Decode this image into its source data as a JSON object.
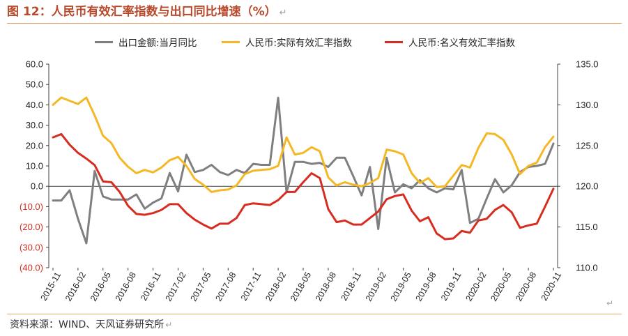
{
  "header": {
    "title": "图 12：人民币有效汇率指数与出口同比增速（%）",
    "return_mark": "↵"
  },
  "footer": {
    "source": "资料来源：WIND、天风证券研究所",
    "return_mark": "↵"
  },
  "corner_return_mark": "↵",
  "chart_data": {
    "type": "line",
    "left_axis": {
      "ylim": [
        -40,
        60
      ],
      "ticks": [
        60,
        50,
        40,
        30,
        20,
        10,
        0,
        -10,
        -20,
        -30,
        -40
      ],
      "tick_labels": [
        "60.0",
        "50.0",
        "40.0",
        "30.0",
        "20.0",
        "10.0",
        "0.0",
        "(10.0)",
        "(20.0)",
        "(30.0)",
        "(40.0)"
      ],
      "tick_colors": [
        "#222222",
        "#222222",
        "#222222",
        "#222222",
        "#222222",
        "#222222",
        "#222222",
        "#d62d20",
        "#d62d20",
        "#d62d20",
        "#d62d20"
      ]
    },
    "right_axis": {
      "ylim": [
        110,
        135
      ],
      "ticks": [
        135,
        130,
        125,
        120,
        115,
        110
      ],
      "tick_labels": [
        "135.0",
        "130.0",
        "125.0",
        "120.0",
        "115.0",
        "110.0"
      ]
    },
    "x_months": [
      "2015-11",
      "2015-12",
      "2016-01",
      "2016-02",
      "2016-03",
      "2016-04",
      "2016-05",
      "2016-06",
      "2016-07",
      "2016-08",
      "2016-09",
      "2016-10",
      "2016-11",
      "2016-12",
      "2017-01",
      "2017-02",
      "2017-03",
      "2017-04",
      "2017-05",
      "2017-06",
      "2017-07",
      "2017-08",
      "2017-09",
      "2017-10",
      "2017-11",
      "2017-12",
      "2018-01",
      "2018-02",
      "2018-03",
      "2018-04",
      "2018-05",
      "2018-06",
      "2018-07",
      "2018-08",
      "2018-09",
      "2018-10",
      "2018-11",
      "2018-12",
      "2019-01",
      "2019-02",
      "2019-03",
      "2019-04",
      "2019-05",
      "2019-06",
      "2019-07",
      "2019-08",
      "2019-09",
      "2019-10",
      "2019-11",
      "2019-12",
      "2020-01",
      "2020-02",
      "2020-03",
      "2020-04",
      "2020-05",
      "2020-06",
      "2020-07",
      "2020-08",
      "2020-09",
      "2020-10",
      "2020-11"
    ],
    "x_tick_labels": [
      "2015-11",
      "2016-02",
      "2016-05",
      "2016-08",
      "2016-11",
      "2017-02",
      "2017-05",
      "2017-08",
      "2017-11",
      "2018-02",
      "2018-05",
      "2018-08",
      "2018-11",
      "2019-02",
      "2019-05",
      "2019-08",
      "2019-11",
      "2020-02",
      "2020-05",
      "2020-08",
      "2020-11"
    ],
    "series": [
      {
        "name": "出口金额:当月同比",
        "axis": "left",
        "color": "#7f7f7f",
        "values": [
          -7,
          -7,
          -2,
          -16,
          -28,
          7.5,
          -5,
          -6.5,
          -6.5,
          -6.5,
          -4,
          -11,
          -8,
          -6,
          6.5,
          -2.5,
          15.5,
          7,
          8,
          10.5,
          7,
          5.5,
          8,
          6.5,
          11,
          10.5,
          10.5,
          43.5,
          -3,
          12,
          12,
          11,
          11.5,
          9.5,
          14,
          14,
          5,
          -4.5,
          9.5,
          -21,
          14,
          -3,
          1,
          -1,
          3,
          -1,
          -3,
          -1,
          -1.5,
          8,
          -18,
          -16,
          -6,
          3.5,
          -3,
          0.5,
          7,
          9.5,
          10,
          11,
          21
        ]
      },
      {
        "name": "人民币:实际有效汇率指数",
        "axis": "right",
        "color": "#f4b825",
        "values": [
          130,
          130.9,
          130.5,
          130.1,
          130.9,
          128.7,
          126.2,
          125.3,
          123.5,
          122.4,
          121.6,
          122,
          121.7,
          122.3,
          123.2,
          123.6,
          122.5,
          120.9,
          120.2,
          119.3,
          119.5,
          119.6,
          120.1,
          121.5,
          121.9,
          122,
          122.1,
          122.5,
          126,
          123.9,
          124.1,
          124.8,
          124.3,
          121.1,
          120.1,
          120.5,
          120.2,
          120,
          120.4,
          121,
          124.5,
          124.3,
          123.9,
          121.6,
          120.4,
          121,
          119.9,
          120,
          121.3,
          122.6,
          122.3,
          124.7,
          126.5,
          126.4,
          125.7,
          123.9,
          121.5,
          122.5,
          122.9,
          124.8,
          126.1
        ]
      },
      {
        "name": "人民币:名义有效汇率指数",
        "axis": "right",
        "color": "#d62d20",
        "values": [
          126,
          126.4,
          125.1,
          124.1,
          123.4,
          122.6,
          120.6,
          120.5,
          119.3,
          117.6,
          116.6,
          116.5,
          116.7,
          117.1,
          117.8,
          117.8,
          116.7,
          115.9,
          115.3,
          114.8,
          115.4,
          115.4,
          116.1,
          117.7,
          117.9,
          117.8,
          117.7,
          118.3,
          119.3,
          119.3,
          120.5,
          121.6,
          121,
          117.2,
          115.6,
          115.8,
          115.3,
          115.3,
          116.1,
          116.9,
          118.4,
          118.8,
          119,
          117,
          115.7,
          116.2,
          114.2,
          113.5,
          113.6,
          114.5,
          114.3,
          115.8,
          116,
          117.1,
          117.7,
          116.8,
          114.9,
          115.2,
          115.4,
          117.5,
          119.7
        ]
      }
    ],
    "legend": {
      "placement": "top-center",
      "entries": [
        "出口金额:当月同比",
        "人民币:实际有效汇率指数",
        "人民币:名义有效汇率指数"
      ]
    },
    "grid": false
  }
}
